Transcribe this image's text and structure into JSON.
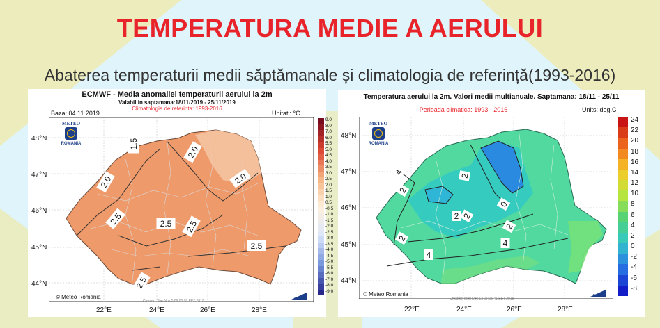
{
  "slide": {
    "title": "TEMPERATURA MEDIE A AERULUI",
    "subtitle": "Abaterea temperaturii medii săptămanale și climatologia de referință(1993-2016)"
  },
  "left_map": {
    "title": "ECMWF - Media anomaliei temperaturii aerului la 2m",
    "valid": "Valabil in saptamana:18/11/2019 - 25/11/2019",
    "climatology": "Climatologia de referinta: 1993-2016",
    "base": "Baza: 04.11.2019",
    "units": "Unitati: °C",
    "lat_labels": [
      "48°N",
      "47°N",
      "46°N",
      "45°N",
      "44°N"
    ],
    "lon_labels": [
      "22°E",
      "24°E",
      "26°E",
      "28°E"
    ],
    "contour_labels": [
      "2.0",
      "2.0",
      "2.0",
      "2.5",
      "2.5",
      "2.5",
      "2.5",
      "2.5",
      "1.5"
    ],
    "legend_values": [
      "9.0",
      "8.0",
      "7.0",
      "6.0",
      "5.5",
      "5.0",
      "4.5",
      "4.0",
      "3.5",
      "3.0",
      "2.5",
      "2.0",
      "1.5",
      "1.0",
      "0.5",
      "-0.5",
      "-1.0",
      "-1.5",
      "-2.0",
      "-2.5",
      "-3.0",
      "-3.5",
      "-4.0",
      "-4.5",
      "-5.0",
      "-5.5",
      "-6.0",
      "-7.0",
      "-8.0",
      "-9.0"
    ],
    "logo_top": "METEO",
    "logo_bottom": "ROMANIA",
    "copyright": "© Meteo Romania",
    "created": "Created: Tue Nov 5 06:05:26 EET 2019",
    "ncar": "NCAR",
    "fill_color": "#ef9a6a"
  },
  "right_map": {
    "title": "Temperatura aerului la 2m. Valori medii multianuale. Saptamana: 18/11 - 25/11",
    "period": "Perioada climatica: 1993 - 2016",
    "units": "Units: deg.C",
    "lat_labels": [
      "48°N",
      "47°N",
      "46°N",
      "45°N",
      "44°N"
    ],
    "lon_labels": [
      "22°E",
      "24°E",
      "26°E",
      "28°E"
    ],
    "contour_labels": [
      "4",
      "2",
      "2",
      "2",
      "0",
      "2",
      "2",
      "2",
      "4",
      "4"
    ],
    "legend_values": [
      "24",
      "22",
      "20",
      "18",
      "16",
      "14",
      "12",
      "10",
      "8",
      "6",
      "4",
      "2",
      "0",
      "-2",
      "-4",
      "-6",
      "-8"
    ],
    "logo_top": "METEO",
    "logo_bottom": "ROMANIA",
    "copyright": "© Meteo Romania",
    "created": "Created: Wed Dec 13 07:05:41 EET 2019",
    "ncar": "NCAR",
    "fill_color": "#52d9a0"
  }
}
